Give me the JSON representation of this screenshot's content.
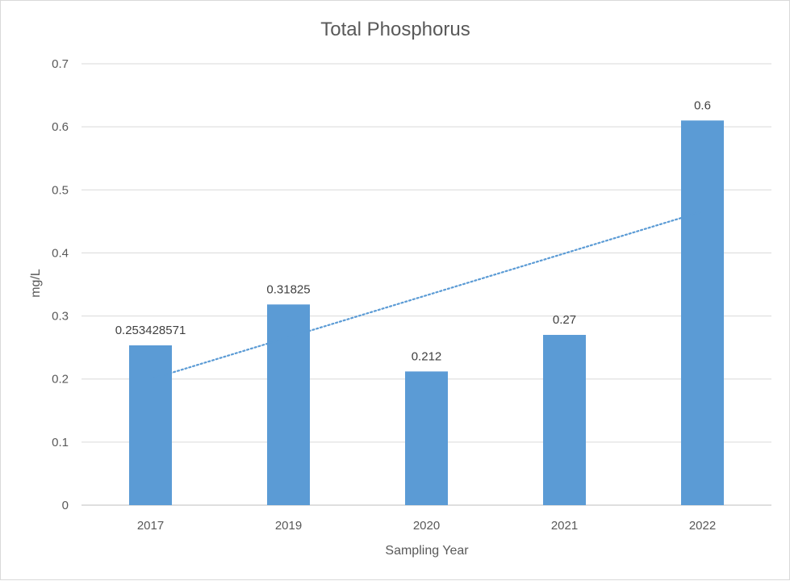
{
  "chart_data": {
    "type": "bar",
    "title": "Total Phosphorus",
    "xlabel": "Sampling Year",
    "ylabel": "mg/L",
    "categories": [
      "2017",
      "2019",
      "2020",
      "2021",
      "2022"
    ],
    "values": [
      0.253428571,
      0.31825,
      0.212,
      0.27,
      0.61
    ],
    "data_labels": [
      "0.253428571",
      "0.31825",
      "0.212",
      "0.27",
      "0.6"
    ],
    "ylim": [
      0,
      0.7
    ],
    "yticks": [
      "0",
      "0.1",
      "0.2",
      "0.3",
      "0.4",
      "0.5",
      "0.6",
      "0.7"
    ],
    "grid": true,
    "legend": "none",
    "trendline": {
      "type": "linear",
      "style": "dotted"
    },
    "colors": {
      "bar": "#5b9bd5",
      "trendline": "#5b9bd5",
      "grid": "#d9d9d9",
      "text": "#595959"
    }
  }
}
